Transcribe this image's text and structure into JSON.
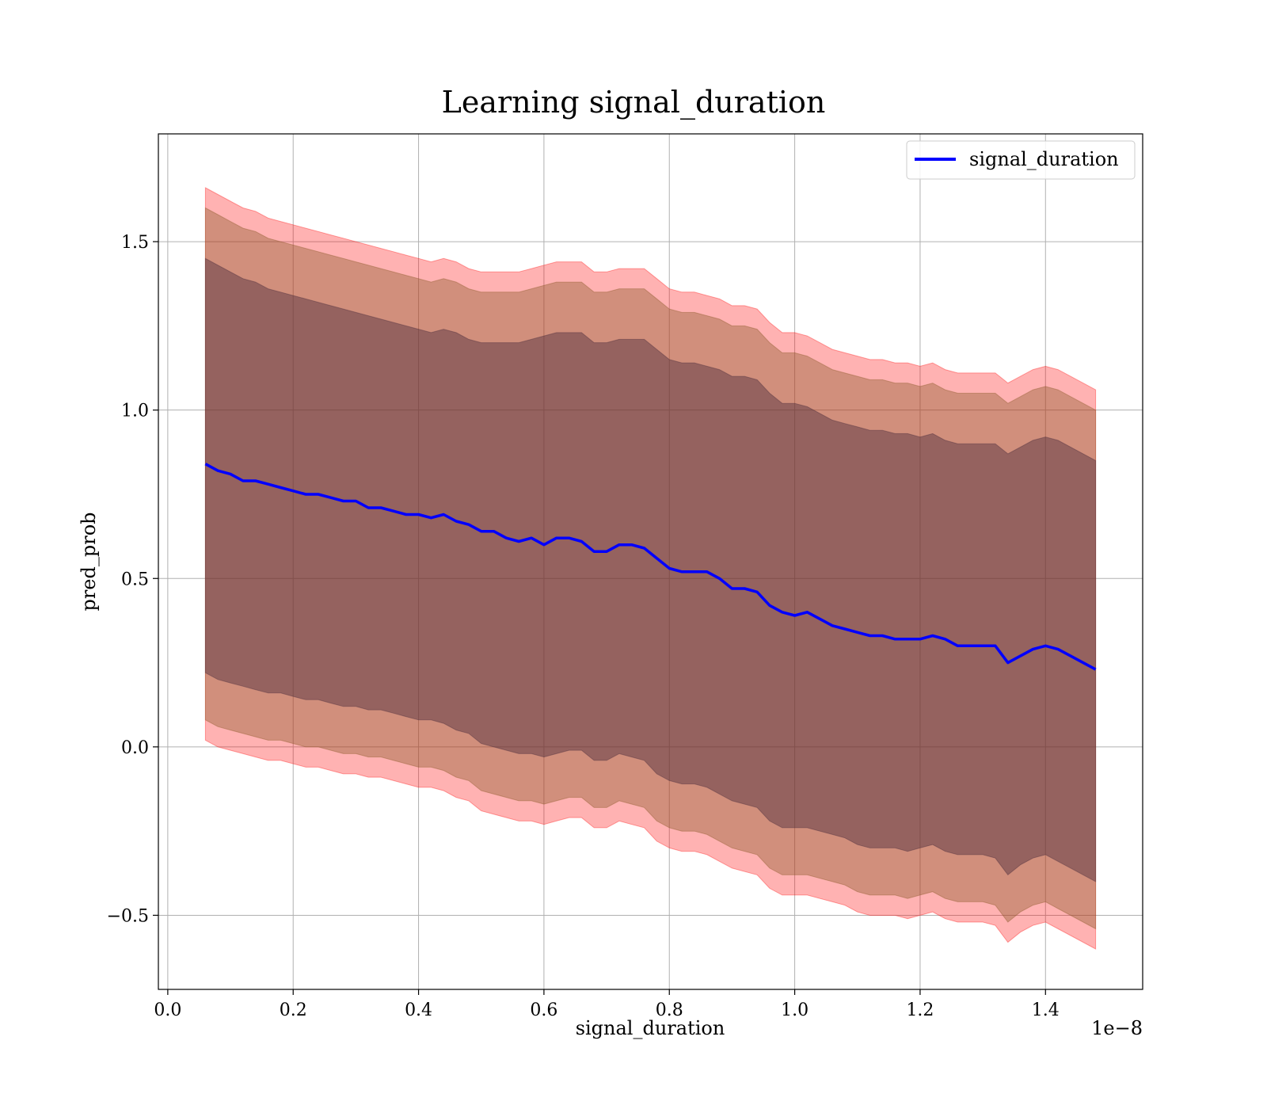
{
  "chart_data": {
    "type": "line",
    "title": "Learning signal_duration",
    "xlabel": "signal_duration",
    "ylabel": "pred_prob",
    "x_offset_label": "1e−8",
    "xlim": [
      -0.015,
      1.555
    ],
    "ylim": [
      -0.72,
      1.82
    ],
    "xticks": [
      0.0,
      0.2,
      0.4,
      0.6,
      0.8,
      1.0,
      1.2,
      1.4
    ],
    "xtick_labels": [
      "0.0",
      "0.2",
      "0.4",
      "0.6",
      "0.8",
      "1.0",
      "1.2",
      "1.4"
    ],
    "yticks": [
      -0.5,
      0.0,
      0.5,
      1.0,
      1.5
    ],
    "ytick_labels": [
      "−0.5",
      "0.0",
      "0.5",
      "1.0",
      "1.5"
    ],
    "grid": true,
    "legend": {
      "position": "top-right",
      "entries": [
        "signal_duration"
      ]
    },
    "colors": {
      "line": "#0000ff",
      "band": "#ff0000",
      "band_inner": "#4b2c3c",
      "band_mid": "#8c5a2a"
    },
    "series": [
      {
        "name": "signal_duration",
        "x": [
          0.06,
          0.08,
          0.1,
          0.12,
          0.14,
          0.16,
          0.18,
          0.2,
          0.22,
          0.24,
          0.26,
          0.28,
          0.3,
          0.32,
          0.34,
          0.36,
          0.38,
          0.4,
          0.42,
          0.44,
          0.46,
          0.48,
          0.5,
          0.52,
          0.54,
          0.56,
          0.58,
          0.6,
          0.62,
          0.64,
          0.66,
          0.68,
          0.7,
          0.72,
          0.74,
          0.76,
          0.78,
          0.8,
          0.82,
          0.84,
          0.86,
          0.88,
          0.9,
          0.92,
          0.94,
          0.96,
          0.98,
          1.0,
          1.02,
          1.04,
          1.06,
          1.08,
          1.1,
          1.12,
          1.14,
          1.16,
          1.18,
          1.2,
          1.22,
          1.24,
          1.26,
          1.28,
          1.3,
          1.32,
          1.34,
          1.36,
          1.38,
          1.4,
          1.42,
          1.44,
          1.46,
          1.48
        ],
        "y": [
          0.84,
          0.82,
          0.81,
          0.79,
          0.79,
          0.78,
          0.77,
          0.76,
          0.75,
          0.75,
          0.74,
          0.73,
          0.73,
          0.71,
          0.71,
          0.7,
          0.69,
          0.69,
          0.68,
          0.69,
          0.67,
          0.66,
          0.64,
          0.64,
          0.62,
          0.61,
          0.62,
          0.6,
          0.62,
          0.62,
          0.61,
          0.58,
          0.58,
          0.6,
          0.6,
          0.59,
          0.56,
          0.53,
          0.52,
          0.52,
          0.52,
          0.5,
          0.47,
          0.47,
          0.46,
          0.42,
          0.4,
          0.39,
          0.4,
          0.38,
          0.36,
          0.35,
          0.34,
          0.33,
          0.33,
          0.32,
          0.32,
          0.32,
          0.33,
          0.32,
          0.3,
          0.3,
          0.3,
          0.3,
          0.25,
          0.27,
          0.29,
          0.3,
          0.29,
          0.27,
          0.25,
          0.23
        ],
        "band_outer_upper": [
          1.66,
          1.64,
          1.62,
          1.6,
          1.59,
          1.57,
          1.56,
          1.55,
          1.54,
          1.53,
          1.52,
          1.51,
          1.5,
          1.49,
          1.48,
          1.47,
          1.46,
          1.45,
          1.44,
          1.45,
          1.44,
          1.42,
          1.41,
          1.41,
          1.41,
          1.41,
          1.42,
          1.43,
          1.44,
          1.44,
          1.44,
          1.41,
          1.41,
          1.42,
          1.42,
          1.42,
          1.39,
          1.36,
          1.35,
          1.35,
          1.34,
          1.33,
          1.31,
          1.31,
          1.3,
          1.26,
          1.23,
          1.23,
          1.22,
          1.2,
          1.18,
          1.17,
          1.16,
          1.15,
          1.15,
          1.14,
          1.14,
          1.13,
          1.14,
          1.12,
          1.11,
          1.11,
          1.11,
          1.11,
          1.08,
          1.1,
          1.12,
          1.13,
          1.12,
          1.1,
          1.08,
          1.06
        ],
        "band_outer_lower": [
          0.02,
          0.0,
          -0.01,
          -0.02,
          -0.03,
          -0.04,
          -0.04,
          -0.05,
          -0.06,
          -0.06,
          -0.07,
          -0.08,
          -0.08,
          -0.09,
          -0.09,
          -0.1,
          -0.11,
          -0.12,
          -0.12,
          -0.13,
          -0.15,
          -0.16,
          -0.19,
          -0.2,
          -0.21,
          -0.22,
          -0.22,
          -0.23,
          -0.22,
          -0.21,
          -0.21,
          -0.24,
          -0.24,
          -0.22,
          -0.23,
          -0.24,
          -0.28,
          -0.3,
          -0.31,
          -0.31,
          -0.32,
          -0.34,
          -0.36,
          -0.37,
          -0.38,
          -0.42,
          -0.44,
          -0.44,
          -0.44,
          -0.45,
          -0.46,
          -0.47,
          -0.49,
          -0.5,
          -0.5,
          -0.5,
          -0.51,
          -0.5,
          -0.49,
          -0.51,
          -0.52,
          -0.52,
          -0.52,
          -0.53,
          -0.58,
          -0.55,
          -0.53,
          -0.52,
          -0.54,
          -0.56,
          -0.58,
          -0.6
        ],
        "band_mid_upper": [
          1.6,
          1.58,
          1.56,
          1.54,
          1.53,
          1.51,
          1.5,
          1.49,
          1.48,
          1.47,
          1.46,
          1.45,
          1.44,
          1.43,
          1.42,
          1.41,
          1.4,
          1.39,
          1.38,
          1.39,
          1.38,
          1.36,
          1.35,
          1.35,
          1.35,
          1.35,
          1.36,
          1.37,
          1.38,
          1.38,
          1.38,
          1.35,
          1.35,
          1.36,
          1.36,
          1.36,
          1.33,
          1.3,
          1.29,
          1.29,
          1.28,
          1.27,
          1.25,
          1.25,
          1.24,
          1.2,
          1.17,
          1.17,
          1.16,
          1.14,
          1.12,
          1.11,
          1.1,
          1.09,
          1.09,
          1.08,
          1.08,
          1.07,
          1.08,
          1.06,
          1.05,
          1.05,
          1.05,
          1.05,
          1.02,
          1.04,
          1.06,
          1.07,
          1.06,
          1.04,
          1.02,
          1.0
        ],
        "band_mid_lower": [
          0.08,
          0.06,
          0.05,
          0.04,
          0.03,
          0.02,
          0.02,
          0.01,
          0.0,
          0.0,
          -0.01,
          -0.02,
          -0.02,
          -0.03,
          -0.03,
          -0.04,
          -0.05,
          -0.06,
          -0.06,
          -0.07,
          -0.09,
          -0.1,
          -0.13,
          -0.14,
          -0.15,
          -0.16,
          -0.16,
          -0.17,
          -0.16,
          -0.15,
          -0.15,
          -0.18,
          -0.18,
          -0.16,
          -0.17,
          -0.18,
          -0.22,
          -0.24,
          -0.25,
          -0.25,
          -0.26,
          -0.28,
          -0.3,
          -0.31,
          -0.32,
          -0.36,
          -0.38,
          -0.38,
          -0.38,
          -0.39,
          -0.4,
          -0.41,
          -0.43,
          -0.44,
          -0.44,
          -0.44,
          -0.45,
          -0.44,
          -0.43,
          -0.45,
          -0.46,
          -0.46,
          -0.46,
          -0.47,
          -0.52,
          -0.49,
          -0.47,
          -0.46,
          -0.48,
          -0.5,
          -0.52,
          -0.54
        ],
        "band_inner_upper": [
          1.45,
          1.43,
          1.41,
          1.39,
          1.38,
          1.36,
          1.35,
          1.34,
          1.33,
          1.32,
          1.31,
          1.3,
          1.29,
          1.28,
          1.27,
          1.26,
          1.25,
          1.24,
          1.23,
          1.24,
          1.23,
          1.21,
          1.2,
          1.2,
          1.2,
          1.2,
          1.21,
          1.22,
          1.23,
          1.23,
          1.23,
          1.2,
          1.2,
          1.21,
          1.21,
          1.21,
          1.18,
          1.15,
          1.14,
          1.14,
          1.13,
          1.12,
          1.1,
          1.1,
          1.09,
          1.05,
          1.02,
          1.02,
          1.01,
          0.99,
          0.97,
          0.96,
          0.95,
          0.94,
          0.94,
          0.93,
          0.93,
          0.92,
          0.93,
          0.91,
          0.9,
          0.9,
          0.9,
          0.9,
          0.87,
          0.89,
          0.91,
          0.92,
          0.91,
          0.89,
          0.87,
          0.85
        ],
        "band_inner_lower": [
          0.22,
          0.2,
          0.19,
          0.18,
          0.17,
          0.16,
          0.16,
          0.15,
          0.14,
          0.14,
          0.13,
          0.12,
          0.12,
          0.11,
          0.11,
          0.1,
          0.09,
          0.08,
          0.08,
          0.07,
          0.05,
          0.04,
          0.01,
          0.0,
          -0.01,
          -0.02,
          -0.02,
          -0.03,
          -0.02,
          -0.01,
          -0.01,
          -0.04,
          -0.04,
          -0.02,
          -0.03,
          -0.04,
          -0.08,
          -0.1,
          -0.11,
          -0.11,
          -0.12,
          -0.14,
          -0.16,
          -0.17,
          -0.18,
          -0.22,
          -0.24,
          -0.24,
          -0.24,
          -0.25,
          -0.26,
          -0.27,
          -0.29,
          -0.3,
          -0.3,
          -0.3,
          -0.31,
          -0.3,
          -0.29,
          -0.31,
          -0.32,
          -0.32,
          -0.32,
          -0.33,
          -0.38,
          -0.35,
          -0.33,
          -0.32,
          -0.34,
          -0.36,
          -0.38,
          -0.4
        ]
      }
    ]
  }
}
